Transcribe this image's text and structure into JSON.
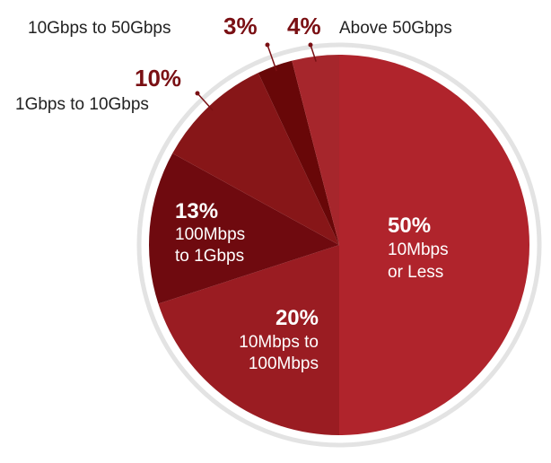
{
  "chart_data": {
    "type": "pie",
    "slices": [
      {
        "value": 50,
        "pct_label": "50%",
        "label_lines": [
          "10Mbps",
          "or Less"
        ],
        "color": "#b0242c"
      },
      {
        "value": 20,
        "pct_label": "20%",
        "label_lines": [
          "10Mbps to",
          "100Mbps"
        ],
        "color": "#9a1c22"
      },
      {
        "value": 13,
        "pct_label": "13%",
        "label_lines": [
          "100Mbps",
          "to 1Gbps"
        ],
        "color": "#6f0a0f"
      },
      {
        "value": 10,
        "pct_label": "10%",
        "label_lines": [
          "1Gbps to 10Gbps"
        ],
        "color": "#871618"
      },
      {
        "value": 3,
        "pct_label": "3%",
        "label_lines": [
          "10Gbps to 50Gbps"
        ],
        "color": "#680708"
      },
      {
        "value": 4,
        "pct_label": "4%",
        "label_lines": [
          "Above 50Gbps"
        ],
        "color": "#a6262c"
      }
    ],
    "outside_label_color": "#7a1014",
    "outer_ring_color": "#e3e3e3",
    "leader_line_color": "#7a1014"
  }
}
